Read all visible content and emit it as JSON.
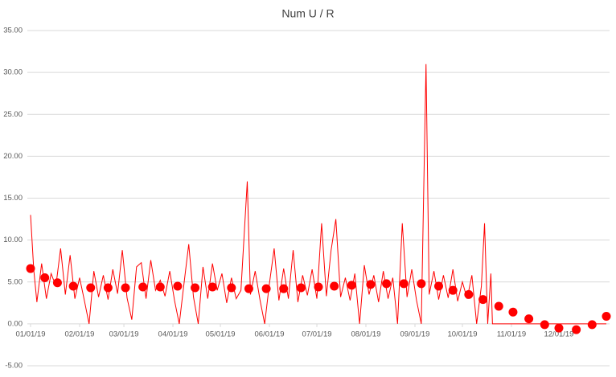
{
  "chart_data": {
    "type": "line",
    "title": "Num U / R",
    "xlim": [
      "2019-01-01",
      "2019-12-31"
    ],
    "xticks": [
      {
        "value": "2019-01-01",
        "label": "01/01/19"
      },
      {
        "value": "2019-02-01",
        "label": "02/01/19"
      },
      {
        "value": "2019-03-01",
        "label": "03/01/19"
      },
      {
        "value": "2019-04-01",
        "label": "04/01/19"
      },
      {
        "value": "2019-05-01",
        "label": "05/01/19"
      },
      {
        "value": "2019-06-01",
        "label": "06/01/19"
      },
      {
        "value": "2019-07-01",
        "label": "07/01/19"
      },
      {
        "value": "2019-08-01",
        "label": "08/01/19"
      },
      {
        "value": "2019-09-01",
        "label": "09/01/19"
      },
      {
        "value": "2019-10-01",
        "label": "10/01/19"
      },
      {
        "value": "2019-11-01",
        "label": "11/01/19"
      },
      {
        "value": "2019-12-01",
        "label": "12/01/19"
      }
    ],
    "ylim": [
      -5,
      35
    ],
    "yticks": [
      {
        "value": -5,
        "label": "-5.00"
      },
      {
        "value": 0,
        "label": "0.00"
      },
      {
        "value": 5,
        "label": "5.00"
      },
      {
        "value": 10,
        "label": "10.00"
      },
      {
        "value": 15,
        "label": "15.00"
      },
      {
        "value": 20,
        "label": "20.00"
      },
      {
        "value": 25,
        "label": "25.00"
      },
      {
        "value": 30,
        "label": "30.00"
      },
      {
        "value": 35,
        "label": "35.00"
      }
    ],
    "grid": true,
    "series": [
      {
        "style": "line",
        "color": "#ff0000",
        "x": [
          "2019-01-01",
          "2019-01-03",
          "2019-01-05",
          "2019-01-08",
          "2019-01-11",
          "2019-01-14",
          "2019-01-17",
          "2019-01-20",
          "2019-01-23",
          "2019-01-26",
          "2019-01-29",
          "2019-02-01",
          "2019-02-04",
          "2019-02-07",
          "2019-02-10",
          "2019-02-13",
          "2019-02-16",
          "2019-02-19",
          "2019-02-22",
          "2019-02-25",
          "2019-02-28",
          "2019-03-03",
          "2019-03-06",
          "2019-03-09",
          "2019-03-12",
          "2019-03-15",
          "2019-03-18",
          "2019-03-21",
          "2019-03-24",
          "2019-03-27",
          "2019-03-30",
          "2019-04-02",
          "2019-04-05",
          "2019-04-08",
          "2019-04-11",
          "2019-04-14",
          "2019-04-17",
          "2019-04-20",
          "2019-04-23",
          "2019-04-26",
          "2019-04-29",
          "2019-05-02",
          "2019-05-05",
          "2019-05-08",
          "2019-05-11",
          "2019-05-14",
          "2019-05-18",
          "2019-05-20",
          "2019-05-23",
          "2019-05-26",
          "2019-05-29",
          "2019-06-01",
          "2019-06-04",
          "2019-06-07",
          "2019-06-10",
          "2019-06-13",
          "2019-06-16",
          "2019-06-19",
          "2019-06-22",
          "2019-06-25",
          "2019-06-28",
          "2019-07-01",
          "2019-07-04",
          "2019-07-07",
          "2019-07-10",
          "2019-07-13",
          "2019-07-16",
          "2019-07-19",
          "2019-07-22",
          "2019-07-25",
          "2019-07-28",
          "2019-07-31",
          "2019-08-03",
          "2019-08-06",
          "2019-08-09",
          "2019-08-12",
          "2019-08-15",
          "2019-08-18",
          "2019-08-21",
          "2019-08-24",
          "2019-08-27",
          "2019-08-30",
          "2019-09-02",
          "2019-09-05",
          "2019-09-08",
          "2019-09-10",
          "2019-09-13",
          "2019-09-16",
          "2019-09-19",
          "2019-09-22",
          "2019-09-25",
          "2019-09-28",
          "2019-10-01",
          "2019-10-04",
          "2019-10-07",
          "2019-10-10",
          "2019-10-13",
          "2019-10-15",
          "2019-10-17",
          "2019-10-19",
          "2019-10-20",
          "2019-12-31"
        ],
        "values": [
          13,
          6.5,
          2.6,
          7.2,
          3.0,
          6.0,
          4.5,
          9.0,
          3.5,
          8.2,
          3.0,
          5.5,
          2.8,
          0,
          6.3,
          3.2,
          5.8,
          2.9,
          6.5,
          3.6,
          8.8,
          3.1,
          0.5,
          6.8,
          7.3,
          3.0,
          7.6,
          4.0,
          5.2,
          3.3,
          6.3,
          2.8,
          0,
          4.8,
          9.5,
          3.2,
          0,
          6.8,
          3.0,
          7.2,
          4.0,
          6.0,
          2.5,
          5.5,
          3.0,
          4.0,
          17.0,
          3.5,
          6.3,
          2.9,
          0,
          4.8,
          9.0,
          2.8,
          6.6,
          3.0,
          8.8,
          2.6,
          5.8,
          3.4,
          6.5,
          3.0,
          12.0,
          3.3,
          8.8,
          12.5,
          3.2,
          5.5,
          2.8,
          6.0,
          0,
          7.0,
          3.5,
          5.8,
          2.6,
          6.3,
          3.0,
          5.5,
          0,
          12.0,
          3.2,
          6.5,
          2.8,
          0,
          31.0,
          3.5,
          6.3,
          2.9,
          5.8,
          3.1,
          6.5,
          2.7,
          5.0,
          3.0,
          5.8,
          0,
          4.5,
          12.0,
          0,
          6.0,
          0,
          0
        ]
      },
      {
        "style": "markers",
        "color": "#ff0000",
        "x": [
          "2019-01-01",
          "2019-01-10",
          "2019-01-18",
          "2019-01-28",
          "2019-02-08",
          "2019-02-19",
          "2019-03-02",
          "2019-03-13",
          "2019-03-24",
          "2019-04-04",
          "2019-04-15",
          "2019-04-26",
          "2019-05-08",
          "2019-05-19",
          "2019-05-30",
          "2019-06-10",
          "2019-06-21",
          "2019-07-02",
          "2019-07-12",
          "2019-07-23",
          "2019-08-04",
          "2019-08-14",
          "2019-08-25",
          "2019-09-05",
          "2019-09-16",
          "2019-09-25",
          "2019-10-05",
          "2019-10-14",
          "2019-10-24",
          "2019-11-02",
          "2019-11-12",
          "2019-11-22",
          "2019-12-01",
          "2019-12-12",
          "2019-12-22",
          "2019-12-31"
        ],
        "values": [
          6.6,
          5.5,
          4.9,
          4.5,
          4.3,
          4.3,
          4.3,
          4.4,
          4.4,
          4.5,
          4.3,
          4.4,
          4.3,
          4.2,
          4.2,
          4.2,
          4.3,
          4.4,
          4.5,
          4.6,
          4.7,
          4.8,
          4.8,
          4.8,
          4.5,
          4.0,
          3.5,
          2.9,
          2.1,
          1.4,
          0.6,
          -0.1,
          -0.5,
          -0.7,
          -0.1,
          0.9
        ]
      }
    ]
  }
}
